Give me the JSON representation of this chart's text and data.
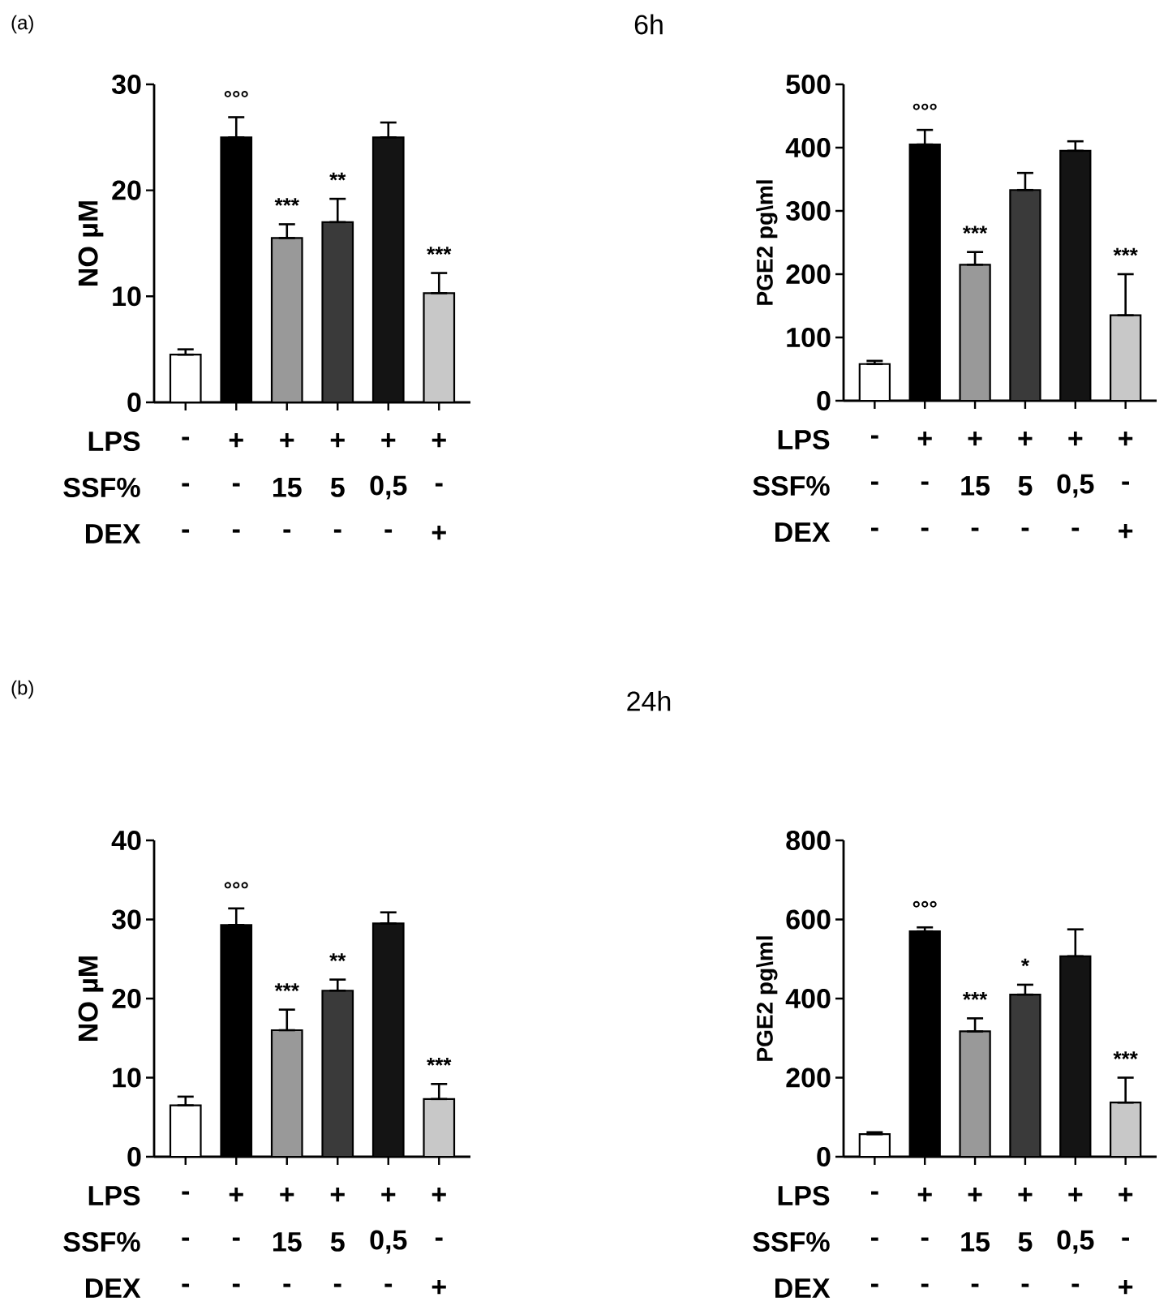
{
  "chart_data": [
    {
      "type": "bar",
      "title": "(a)",
      "ylabel": "NO µM",
      "categories": [
        null,
        null,
        null,
        null,
        null,
        null
      ],
      "tick_labels": "y",
      "values": [
        4.5,
        25,
        15.5,
        17,
        25,
        10.3
      ],
      "errors": [
        [
          4.5,
          5.0
        ],
        [
          25,
          26.9
        ],
        [
          15.5,
          16.8
        ],
        [
          17,
          19.2
        ],
        [
          25,
          26.4
        ],
        [
          10.3,
          12.2
        ]
      ],
      "value_labels": [
        null,
        "°°°",
        "***",
        "**",
        null,
        "***"
      ],
      "colors": [
        "#ffffff",
        "#000000",
        "#999999",
        "#3a3a3a",
        "#141414",
        "#c8c8c8"
      ],
      "ylim": [
        0,
        30
      ],
      "yticks": [
        0,
        10,
        20,
        30
      ],
      "annotations": [
        "LPS",
        "-",
        "+",
        "+",
        "+",
        "+",
        "+",
        "SSF%",
        "-",
        "-",
        "15",
        "5",
        "0,5",
        "-",
        "DEX",
        "-",
        "-",
        "-",
        "-",
        "-",
        "+"
      ]
    },
    {
      "type": "bar",
      "title": "6h",
      "ylabel": "PGE2 pg\\ml",
      "categories": [
        null,
        null,
        null,
        null,
        null,
        null
      ],
      "tick_labels": "y",
      "values": [
        58,
        405,
        215,
        333,
        395,
        135
      ],
      "errors": [
        [
          58,
          63
        ],
        [
          405,
          428
        ],
        [
          215,
          235
        ],
        [
          333,
          360
        ],
        [
          395,
          410
        ],
        [
          135,
          200
        ]
      ],
      "value_labels": [
        null,
        "°°°",
        "***",
        null,
        null,
        "***"
      ],
      "colors": [
        "#ffffff",
        "#000000",
        "#999999",
        "#3a3a3a",
        "#141414",
        "#c8c8c8"
      ],
      "ylim": [
        0,
        500
      ],
      "yticks": [
        0,
        100,
        200,
        300,
        400,
        500
      ],
      "annotations": [
        "LPS",
        "-",
        "+",
        "+",
        "+",
        "+",
        "+",
        "SSF%",
        "-",
        "-",
        "15",
        "5",
        "0,5",
        "-",
        "DEX",
        "-",
        "-",
        "-",
        "-",
        "-",
        "+"
      ]
    },
    {
      "type": "bar",
      "title": "(b)",
      "ylabel": "NO µM",
      "categories": [
        null,
        null,
        null,
        null,
        null,
        null
      ],
      "tick_labels": "y",
      "values": [
        6.5,
        29.3,
        16,
        21,
        29.5,
        7.3
      ],
      "errors": [
        [
          6.5,
          7.6
        ],
        [
          29.3,
          31.4
        ],
        [
          16,
          18.6
        ],
        [
          21,
          22.4
        ],
        [
          29.5,
          30.9
        ],
        [
          7.3,
          9.2
        ]
      ],
      "value_labels": [
        null,
        "°°°",
        "***",
        "**",
        null,
        "***"
      ],
      "colors": [
        "#ffffff",
        "#000000",
        "#999999",
        "#3a3a3a",
        "#141414",
        "#c8c8c8"
      ],
      "ylim": [
        0,
        40
      ],
      "yticks": [
        0,
        10,
        20,
        30,
        40
      ],
      "annotations": [
        "LPS",
        "-",
        "+",
        "+",
        "+",
        "+",
        "+",
        "SSF%",
        "-",
        "-",
        "15",
        "5",
        "0,5",
        "-",
        "DEX",
        "-",
        "-",
        "-",
        "-",
        "-",
        "+"
      ]
    },
    {
      "type": "bar",
      "title": "24h",
      "ylabel": "PGE2 pg\\ml",
      "categories": [
        null,
        null,
        null,
        null,
        null,
        null
      ],
      "tick_labels": "y",
      "values": [
        57,
        570,
        317,
        410,
        507,
        137
      ],
      "errors": [
        [
          57,
          62
        ],
        [
          570,
          580
        ],
        [
          317,
          350
        ],
        [
          410,
          435
        ],
        [
          507,
          575
        ],
        [
          137,
          200
        ]
      ],
      "value_labels": [
        null,
        "°°°",
        "***",
        "*",
        null,
        "***"
      ],
      "colors": [
        "#ffffff",
        "#000000",
        "#999999",
        "#3a3a3a",
        "#141414",
        "#c8c8c8"
      ],
      "ylim": [
        0,
        800
      ],
      "yticks": [
        0,
        200,
        400,
        600,
        800
      ],
      "annotations": [
        "LPS",
        "-",
        "+",
        "+",
        "+",
        "+",
        "+",
        "SSF%",
        "-",
        "-",
        "15",
        "5",
        "0,5",
        "-",
        "DEX",
        "-",
        "-",
        "-",
        "-",
        "-",
        "+"
      ]
    }
  ]
}
